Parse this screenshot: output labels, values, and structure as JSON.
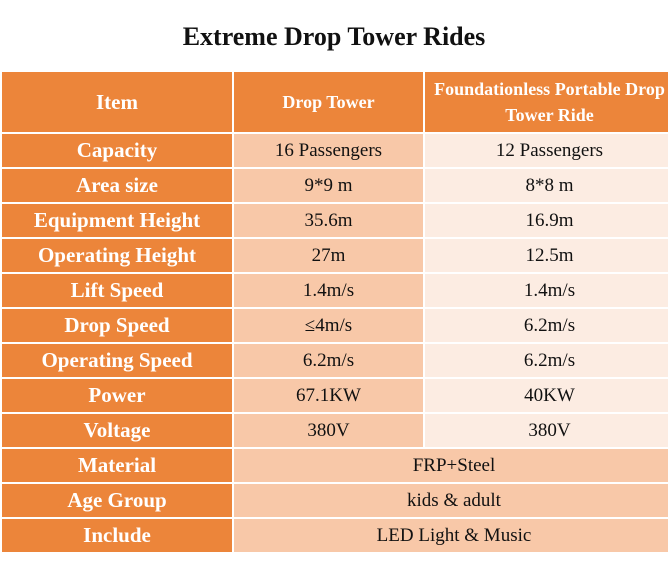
{
  "title": "Extreme Drop Tower Rides",
  "table": {
    "headers": [
      "Item",
      "Drop Tower",
      "Foundationless Portable Drop Tower Ride"
    ],
    "rows": [
      {
        "item": "Capacity",
        "a": "16 Passengers",
        "b": "12 Passengers"
      },
      {
        "item": "Area size",
        "a": "9*9 m",
        "b": "8*8 m"
      },
      {
        "item": "Equipment Height",
        "a": "35.6m",
        "b": "16.9m"
      },
      {
        "item": "Operating Height",
        "a": "27m",
        "b": "12.5m"
      },
      {
        "item": "Lift Speed",
        "a": "1.4m/s",
        "b": "1.4m/s"
      },
      {
        "item": "Drop Speed",
        "a": "≤4m/s",
        "b": "6.2m/s"
      },
      {
        "item": "Operating Speed",
        "a": "6.2m/s",
        "b": "6.2m/s"
      },
      {
        "item": "Power",
        "a": "67.1KW",
        "b": "40KW"
      },
      {
        "item": "Voltage",
        "a": "380V",
        "b": "380V"
      }
    ],
    "merged_rows": [
      {
        "item": "Material",
        "value": "FRP+Steel"
      },
      {
        "item": "Age Group",
        "value": "kids & adult"
      },
      {
        "item": "Include",
        "value": "LED Light & Music"
      }
    ]
  },
  "colors": {
    "header_orange": "#ec853a",
    "column_a_peach": "#f8c8a8",
    "column_b_light": "#fcece2"
  }
}
